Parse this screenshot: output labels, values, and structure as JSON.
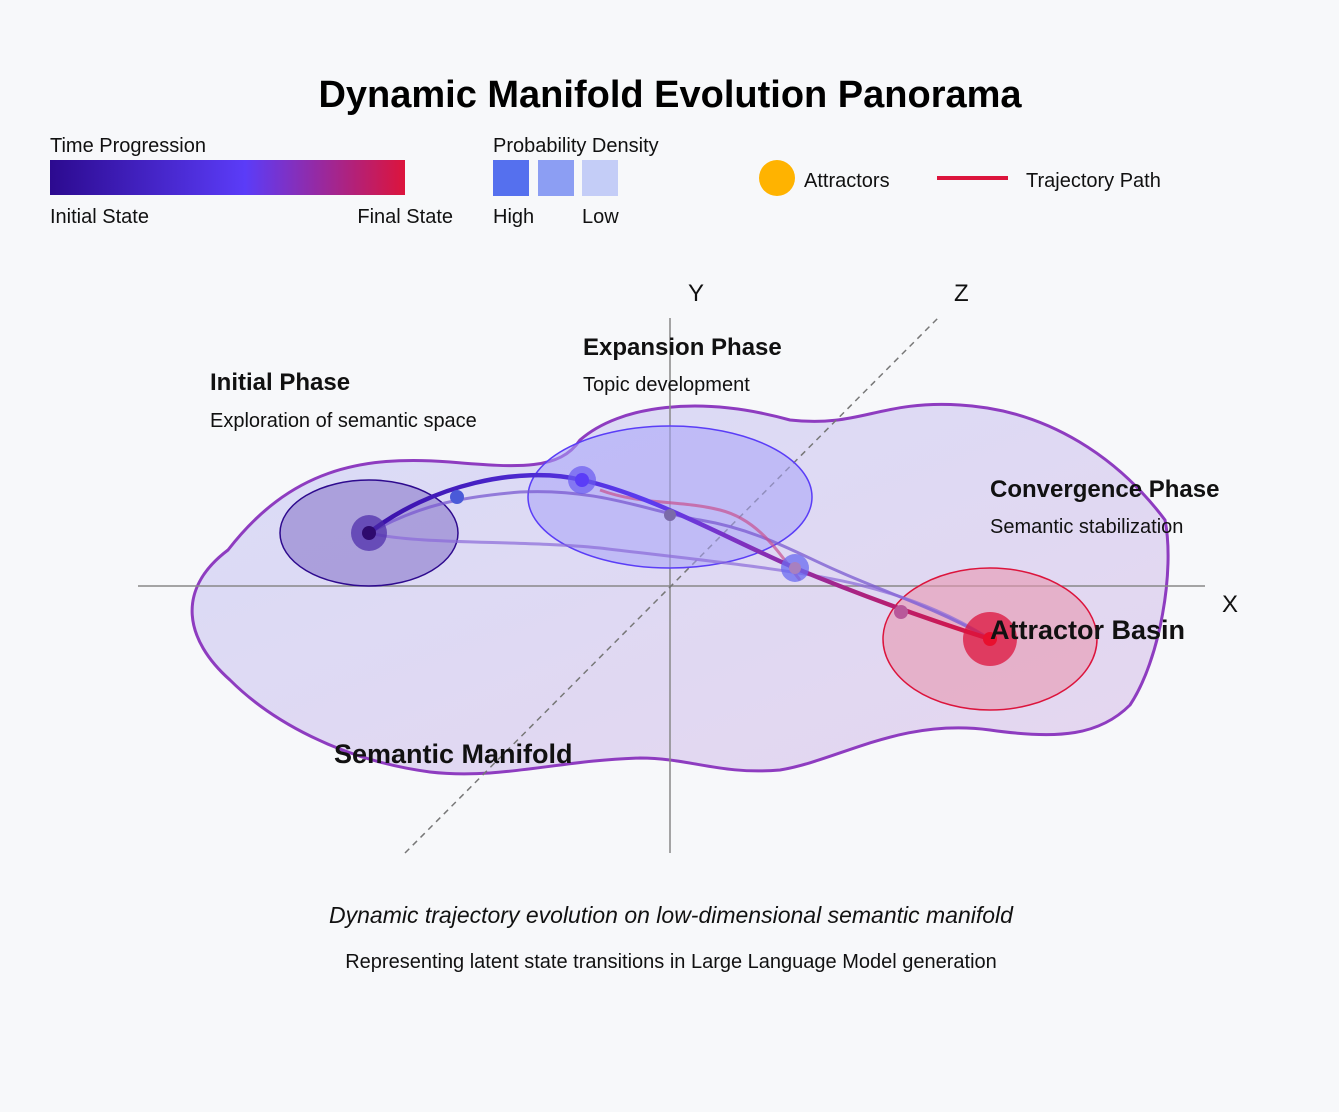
{
  "title": "Dynamic Manifold Evolution Panorama",
  "legend": {
    "time": {
      "title": "Time Progression",
      "start": "Initial State",
      "end": "Final State"
    },
    "density": {
      "title": "Probability Density",
      "high": "High",
      "low": "Low"
    },
    "attractors": "Attractors",
    "trajectory": "Trajectory Path"
  },
  "axes": {
    "x": "X",
    "y": "Y",
    "z": "Z"
  },
  "phases": {
    "initial": {
      "title": "Initial Phase",
      "subtitle": "Exploration of semantic space"
    },
    "expansion": {
      "title": "Expansion Phase",
      "subtitle": "Topic development"
    },
    "convergence": {
      "title": "Convergence Phase",
      "subtitle": "Semantic stabilization"
    }
  },
  "labels": {
    "basin": "Attractor Basin",
    "manifold": "Semantic Manifold"
  },
  "caption": {
    "main": "Dynamic trajectory evolution on low-dimensional semantic manifold",
    "sub": "Representing latent state transitions in Large Language Model generation"
  },
  "colors": {
    "initial": "#2e0a8e",
    "mid": "#5a3df7",
    "final": "#dc143c",
    "attractor": "#ffb300",
    "manifold_stroke": "#8e3cc0",
    "density_high": "#5570ee",
    "density_mid": "#8c9ef3",
    "density_low": "#c4cdf7"
  }
}
